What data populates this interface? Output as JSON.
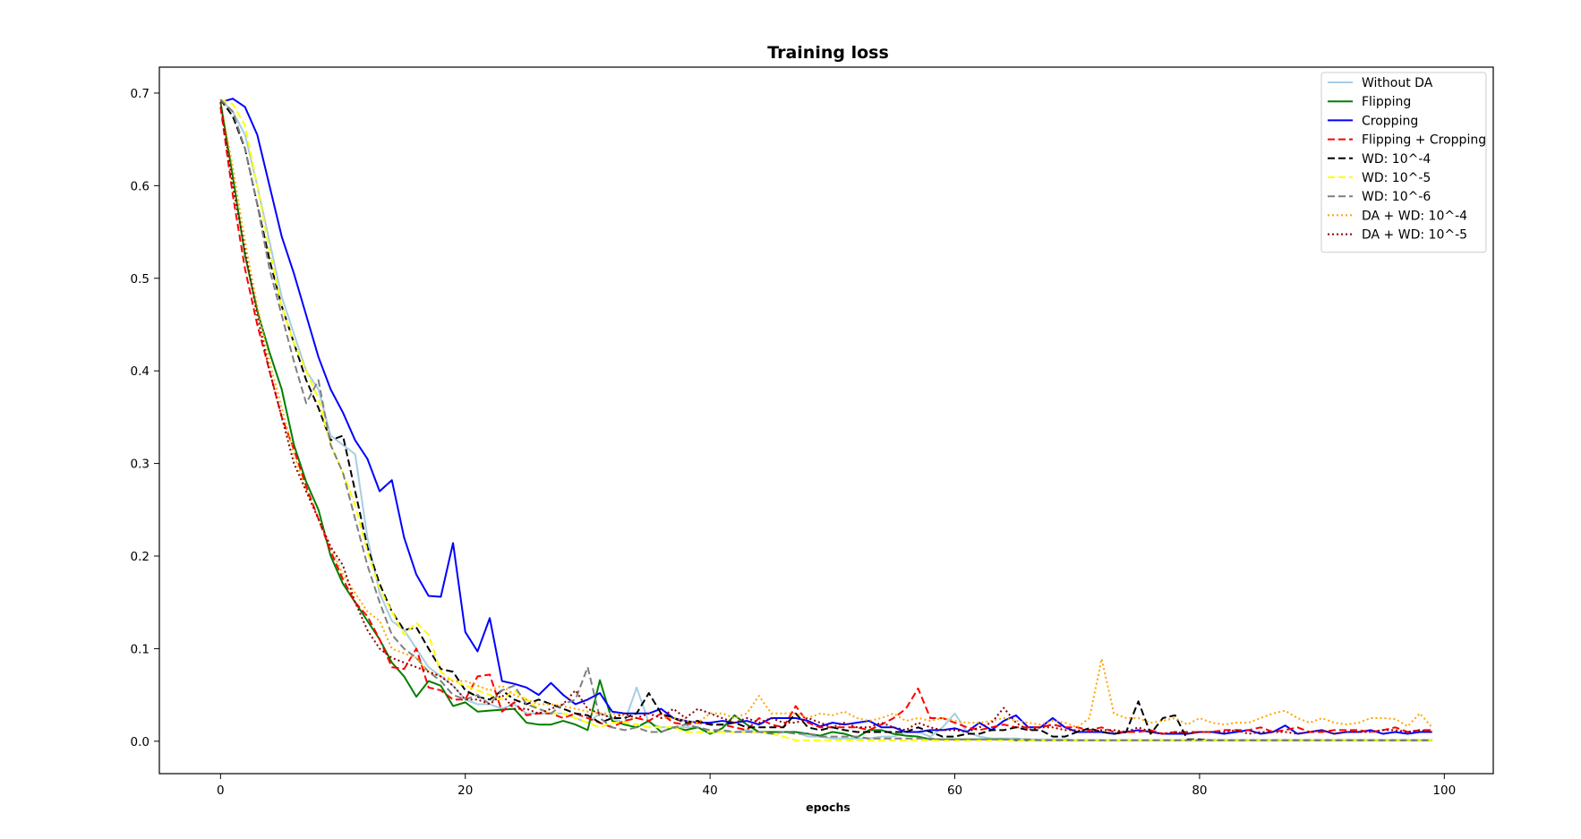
{
  "chart_data": {
    "type": "line",
    "title": "Training loss",
    "xlabel": "epochs",
    "ylabel": "",
    "xlim": [
      -5,
      104
    ],
    "ylim": [
      -0.035,
      0.728
    ],
    "xticks": [
      0,
      20,
      40,
      60,
      80,
      100
    ],
    "xtick_labels": [
      "0",
      "20",
      "40",
      "60",
      "80",
      "100"
    ],
    "yticks": [
      0.0,
      0.1,
      0.2,
      0.3,
      0.4,
      0.5,
      0.6,
      0.7
    ],
    "ytick_labels": [
      "0.0",
      "0.1",
      "0.2",
      "0.3",
      "0.4",
      "0.5",
      "0.6",
      "0.7"
    ],
    "grid": false,
    "legend_position": "top-right",
    "x": [
      0,
      1,
      2,
      3,
      4,
      5,
      6,
      7,
      8,
      9,
      10,
      11,
      12,
      13,
      14,
      15,
      16,
      17,
      18,
      19,
      20,
      21,
      22,
      23,
      24,
      25,
      26,
      27,
      28,
      29,
      30,
      31,
      32,
      33,
      34,
      35,
      36,
      37,
      38,
      39,
      40,
      41,
      42,
      43,
      44,
      45,
      46,
      47,
      48,
      49,
      50,
      51,
      52,
      53,
      54,
      55,
      56,
      57,
      58,
      59,
      60,
      61,
      62,
      63,
      64,
      65,
      66,
      67,
      68,
      69,
      70,
      71,
      72,
      73,
      74,
      75,
      76,
      77,
      78,
      79,
      80,
      81,
      82,
      83,
      84,
      85,
      86,
      87,
      88,
      89,
      90,
      91,
      92,
      93,
      94,
      95,
      96,
      97,
      98,
      99
    ],
    "series": [
      {
        "name": "Without DA",
        "color": "#a6cee3",
        "style": "solid",
        "values": [
          0.693,
          0.68,
          0.655,
          0.6,
          0.54,
          0.48,
          0.44,
          0.4,
          0.38,
          0.33,
          0.32,
          0.31,
          0.22,
          0.16,
          0.13,
          0.12,
          0.1,
          0.08,
          0.07,
          0.06,
          0.045,
          0.04,
          0.04,
          0.035,
          0.04,
          0.03,
          0.03,
          0.03,
          0.03,
          0.025,
          0.02,
          0.03,
          0.025,
          0.02,
          0.058,
          0.02,
          0.015,
          0.015,
          0.015,
          0.015,
          0.01,
          0.01,
          0.01,
          0.012,
          0.01,
          0.01,
          0.01,
          0.01,
          0.005,
          0.005,
          0.003,
          0.003,
          0.003,
          0.003,
          0.005,
          0.005,
          0.01,
          0.01,
          0.005,
          0.015,
          0.03,
          0.01,
          0.005,
          0.003,
          0.003,
          0.003,
          0.002,
          0.002,
          0.002,
          0.002,
          0.001,
          0.001,
          0.001,
          0.001,
          0.001,
          0.001,
          0.001,
          0.001,
          0.001,
          0.001,
          0.001,
          0.001,
          0.001,
          0.001,
          0.001,
          0.001,
          0.001,
          0.001,
          0.001,
          0.001,
          0.001,
          0.001,
          0.001,
          0.001,
          0.001,
          0.001,
          0.001,
          0.001,
          0.001,
          0.001
        ]
      },
      {
        "name": "Flipping",
        "color": "#008000",
        "style": "solid",
        "values": [
          0.69,
          0.61,
          0.525,
          0.465,
          0.42,
          0.38,
          0.32,
          0.28,
          0.25,
          0.2,
          0.17,
          0.15,
          0.13,
          0.11,
          0.085,
          0.07,
          0.048,
          0.065,
          0.06,
          0.038,
          0.042,
          0.032,
          0.033,
          0.034,
          0.035,
          0.02,
          0.018,
          0.018,
          0.022,
          0.018,
          0.012,
          0.066,
          0.022,
          0.018,
          0.015,
          0.022,
          0.01,
          0.015,
          0.012,
          0.015,
          0.008,
          0.014,
          0.028,
          0.018,
          0.01,
          0.01,
          0.01,
          0.01,
          0.008,
          0.006,
          0.01,
          0.008,
          0.004,
          0.012,
          0.012,
          0.008,
          0.006,
          0.005,
          0.002,
          0.002,
          0.002,
          0.002,
          0.002,
          0.002,
          0.002,
          0.001,
          0.001,
          0.001,
          0.001,
          0.001,
          0.001,
          0.001,
          0.001,
          0.001,
          0.001,
          0.001,
          0.001,
          0.001,
          0.001,
          0.001,
          0.001,
          0.001,
          0.001,
          0.001,
          0.001,
          0.001,
          0.001,
          0.001,
          0.001,
          0.001,
          0.001,
          0.001,
          0.001,
          0.001,
          0.001,
          0.001,
          0.001,
          0.001,
          0.001,
          0.001
        ]
      },
      {
        "name": "Cropping",
        "color": "#0000ff",
        "style": "solid",
        "values": [
          0.69,
          0.694,
          0.685,
          0.655,
          0.6,
          0.545,
          0.505,
          0.46,
          0.415,
          0.38,
          0.355,
          0.325,
          0.305,
          0.27,
          0.282,
          0.22,
          0.18,
          0.157,
          0.156,
          0.214,
          0.118,
          0.097,
          0.133,
          0.065,
          0.062,
          0.058,
          0.05,
          0.063,
          0.05,
          0.04,
          0.045,
          0.052,
          0.032,
          0.03,
          0.03,
          0.03,
          0.035,
          0.025,
          0.022,
          0.02,
          0.02,
          0.022,
          0.02,
          0.022,
          0.018,
          0.025,
          0.025,
          0.025,
          0.022,
          0.016,
          0.02,
          0.018,
          0.02,
          0.022,
          0.015,
          0.015,
          0.01,
          0.01,
          0.012,
          0.012,
          0.014,
          0.01,
          0.02,
          0.012,
          0.022,
          0.028,
          0.015,
          0.015,
          0.025,
          0.015,
          0.01,
          0.01,
          0.01,
          0.008,
          0.01,
          0.012,
          0.01,
          0.008,
          0.008,
          0.008,
          0.01,
          0.01,
          0.008,
          0.01,
          0.012,
          0.008,
          0.01,
          0.017,
          0.008,
          0.01,
          0.012,
          0.008,
          0.01,
          0.01,
          0.012,
          0.008,
          0.01,
          0.008,
          0.01,
          0.01
        ]
      },
      {
        "name": "Flipping + Cropping",
        "color": "#ff0000",
        "style": "dashed",
        "values": [
          0.685,
          0.59,
          0.51,
          0.45,
          0.4,
          0.35,
          0.315,
          0.275,
          0.24,
          0.205,
          0.175,
          0.15,
          0.135,
          0.11,
          0.08,
          0.078,
          0.1,
          0.058,
          0.055,
          0.045,
          0.045,
          0.07,
          0.072,
          0.032,
          0.042,
          0.028,
          0.03,
          0.03,
          0.025,
          0.03,
          0.025,
          0.02,
          0.015,
          0.022,
          0.025,
          0.022,
          0.03,
          0.02,
          0.018,
          0.02,
          0.018,
          0.018,
          0.015,
          0.012,
          0.025,
          0.018,
          0.015,
          0.038,
          0.02,
          0.015,
          0.015,
          0.015,
          0.015,
          0.012,
          0.018,
          0.025,
          0.035,
          0.057,
          0.025,
          0.025,
          0.02,
          0.015,
          0.012,
          0.015,
          0.018,
          0.015,
          0.015,
          0.015,
          0.018,
          0.015,
          0.015,
          0.012,
          0.015,
          0.01,
          0.01,
          0.01,
          0.012,
          0.008,
          0.01,
          0.01,
          0.01,
          0.01,
          0.012,
          0.012,
          0.012,
          0.015,
          0.01,
          0.012,
          0.015,
          0.01,
          0.01,
          0.012,
          0.012,
          0.012,
          0.01,
          0.012,
          0.015,
          0.01,
          0.012,
          0.012
        ]
      },
      {
        "name": "WD: 10^-4",
        "color": "#000000",
        "style": "dashed",
        "values": [
          0.693,
          0.675,
          0.64,
          0.58,
          0.52,
          0.47,
          0.43,
          0.39,
          0.36,
          0.325,
          0.33,
          0.27,
          0.21,
          0.17,
          0.14,
          0.12,
          0.123,
          0.1,
          0.078,
          0.075,
          0.055,
          0.048,
          0.045,
          0.055,
          0.045,
          0.04,
          0.045,
          0.04,
          0.035,
          0.03,
          0.028,
          0.02,
          0.025,
          0.025,
          0.03,
          0.052,
          0.03,
          0.025,
          0.02,
          0.022,
          0.018,
          0.018,
          0.02,
          0.015,
          0.015,
          0.015,
          0.015,
          0.03,
          0.015,
          0.012,
          0.015,
          0.012,
          0.01,
          0.01,
          0.01,
          0.01,
          0.01,
          0.015,
          0.01,
          0.005,
          0.005,
          0.008,
          0.008,
          0.012,
          0.012,
          0.015,
          0.012,
          0.012,
          0.005,
          0.005,
          0.01,
          0.014,
          0.01,
          0.008,
          0.01,
          0.043,
          0.008,
          0.025,
          0.028,
          0.002,
          0.002,
          0.001,
          0.001,
          0.001,
          0.001,
          0.001,
          0.001,
          0.001,
          0.001,
          0.001,
          0.001,
          0.001,
          0.001,
          0.001,
          0.001,
          0.001,
          0.001,
          0.001,
          0.001,
          0.001
        ]
      },
      {
        "name": "WD: 10^-5",
        "color": "#ffff00",
        "style": "dashed",
        "values": [
          0.693,
          0.688,
          0.665,
          0.6,
          0.53,
          0.47,
          0.43,
          0.4,
          0.37,
          0.32,
          0.29,
          0.255,
          0.205,
          0.165,
          0.14,
          0.115,
          0.128,
          0.115,
          0.075,
          0.065,
          0.06,
          0.055,
          0.05,
          0.045,
          0.055,
          0.045,
          0.035,
          0.03,
          0.03,
          0.025,
          0.02,
          0.015,
          0.02,
          0.02,
          0.018,
          0.015,
          0.015,
          0.015,
          0.01,
          0.01,
          0.01,
          0.01,
          0.01,
          0.01,
          0.01,
          0.008,
          0.005,
          0.001,
          0.001,
          0.001,
          0.001,
          0.001,
          0.001,
          0.001,
          0.001,
          0.001,
          0.001,
          0.001,
          0.001,
          0.001,
          0.001,
          0.001,
          0.001,
          0.001,
          0.001,
          0.001,
          0.001,
          0.001,
          0.001,
          0.001,
          0.001,
          0.001,
          0.001,
          0.001,
          0.001,
          0.001,
          0.001,
          0.001,
          0.001,
          0.001,
          0.001,
          0.001,
          0.001,
          0.001,
          0.001,
          0.001,
          0.001,
          0.001,
          0.001,
          0.001,
          0.001,
          0.001,
          0.001,
          0.001,
          0.001,
          0.001,
          0.001,
          0.001,
          0.001,
          0.001
        ]
      },
      {
        "name": "WD: 10^-6",
        "color": "#808080",
        "style": "dashed",
        "values": [
          0.693,
          0.68,
          0.64,
          0.58,
          0.51,
          0.46,
          0.41,
          0.365,
          0.39,
          0.32,
          0.29,
          0.24,
          0.19,
          0.15,
          0.115,
          0.1,
          0.09,
          0.075,
          0.065,
          0.05,
          0.045,
          0.05,
          0.04,
          0.055,
          0.06,
          0.04,
          0.035,
          0.03,
          0.04,
          0.045,
          0.08,
          0.025,
          0.015,
          0.012,
          0.015,
          0.01,
          0.01,
          0.015,
          0.018,
          0.015,
          0.012,
          0.012,
          0.01,
          0.01,
          0.01,
          0.008,
          0.01,
          0.008,
          0.008,
          0.005,
          0.005,
          0.005,
          0.005,
          0.003,
          0.003,
          0.003,
          0.003,
          0.003,
          0.003,
          0.002,
          0.002,
          0.002,
          0.002,
          0.002,
          0.002,
          0.002,
          0.002,
          0.001,
          0.001,
          0.001,
          0.001,
          0.001,
          0.001,
          0.001,
          0.001,
          0.001,
          0.001,
          0.001,
          0.001,
          0.001,
          0.001,
          0.001,
          0.001,
          0.001,
          0.001,
          0.001,
          0.001,
          0.001,
          0.001,
          0.001,
          0.001,
          0.001,
          0.001,
          0.001,
          0.001,
          0.001,
          0.001,
          0.001,
          0.001,
          0.001
        ]
      },
      {
        "name": "DA + WD: 10^-4",
        "color": "#ffa500",
        "style": "dotted",
        "values": [
          0.69,
          0.62,
          0.54,
          0.47,
          0.41,
          0.36,
          0.31,
          0.27,
          0.24,
          0.21,
          0.18,
          0.16,
          0.14,
          0.13,
          0.1,
          0.095,
          0.09,
          0.075,
          0.07,
          0.065,
          0.065,
          0.06,
          0.055,
          0.06,
          0.05,
          0.045,
          0.04,
          0.04,
          0.038,
          0.035,
          0.032,
          0.03,
          0.03,
          0.028,
          0.025,
          0.03,
          0.025,
          0.025,
          0.022,
          0.02,
          0.03,
          0.03,
          0.025,
          0.03,
          0.049,
          0.03,
          0.03,
          0.03,
          0.025,
          0.03,
          0.028,
          0.032,
          0.025,
          0.022,
          0.025,
          0.03,
          0.022,
          0.025,
          0.022,
          0.025,
          0.022,
          0.02,
          0.02,
          0.022,
          0.025,
          0.022,
          0.02,
          0.018,
          0.022,
          0.02,
          0.015,
          0.025,
          0.089,
          0.03,
          0.025,
          0.025,
          0.02,
          0.022,
          0.025,
          0.018,
          0.025,
          0.02,
          0.018,
          0.02,
          0.02,
          0.025,
          0.03,
          0.033,
          0.025,
          0.02,
          0.025,
          0.02,
          0.018,
          0.02,
          0.025,
          0.025,
          0.024,
          0.016,
          0.03,
          0.015
        ]
      },
      {
        "name": "DA + WD: 10^-5",
        "color": "#8b0000",
        "style": "dotted",
        "values": [
          0.69,
          0.6,
          0.53,
          0.46,
          0.4,
          0.35,
          0.3,
          0.27,
          0.24,
          0.21,
          0.19,
          0.15,
          0.12,
          0.1,
          0.09,
          0.085,
          0.08,
          0.075,
          0.07,
          0.06,
          0.045,
          0.045,
          0.04,
          0.05,
          0.035,
          0.035,
          0.03,
          0.035,
          0.04,
          0.055,
          0.035,
          0.03,
          0.025,
          0.03,
          0.025,
          0.03,
          0.025,
          0.035,
          0.025,
          0.035,
          0.03,
          0.025,
          0.02,
          0.025,
          0.02,
          0.025,
          0.02,
          0.02,
          0.025,
          0.02,
          0.015,
          0.02,
          0.015,
          0.015,
          0.02,
          0.015,
          0.012,
          0.02,
          0.015,
          0.012,
          0.012,
          0.01,
          0.015,
          0.02,
          0.036,
          0.02,
          0.012,
          0.015,
          0.015,
          0.012,
          0.012,
          0.01,
          0.012,
          0.012,
          0.01,
          0.015,
          0.01,
          0.008,
          0.01,
          0.008,
          0.01,
          0.01,
          0.01,
          0.012,
          0.008,
          0.01,
          0.01,
          0.01,
          0.008,
          0.01,
          0.012,
          0.008,
          0.01,
          0.01,
          0.01,
          0.012,
          0.012,
          0.01,
          0.012,
          0.01
        ]
      }
    ]
  }
}
